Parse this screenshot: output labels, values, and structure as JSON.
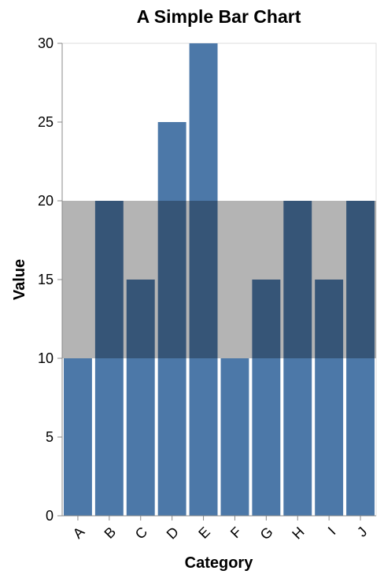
{
  "chart_data": {
    "type": "bar",
    "title": "A Simple Bar Chart",
    "xlabel": "Category",
    "ylabel": "Value",
    "categories": [
      "A",
      "B",
      "C",
      "D",
      "E",
      "F",
      "G",
      "H",
      "I",
      "J"
    ],
    "values": [
      10,
      20,
      15,
      25,
      30,
      10,
      15,
      20,
      15,
      20
    ],
    "ylim": [
      0,
      30
    ],
    "yticks": [
      0,
      5,
      10,
      15,
      20,
      25,
      30
    ],
    "grid": false,
    "highlight_band": {
      "from": 10,
      "to": 20,
      "color": "#b0b0b0",
      "opacity": 0.95
    },
    "bar_color": "#4c78a8",
    "x_tick_rotation": -45
  }
}
